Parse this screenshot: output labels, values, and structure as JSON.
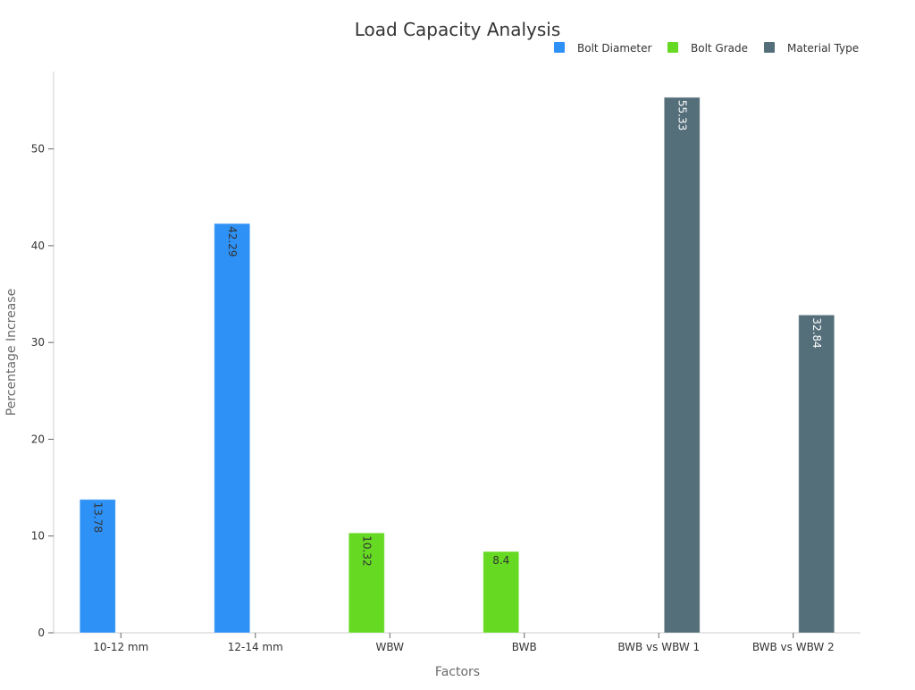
{
  "chart_data": {
    "type": "bar",
    "title": "Load Capacity Analysis",
    "xlabel": "Factors",
    "ylabel": "Percentage Increase",
    "categories": [
      "10-12 mm",
      "12-14 mm",
      "WBW",
      "BWB",
      "BWB vs WBW 1",
      "BWB vs WBW 2"
    ],
    "series": [
      {
        "name": "Bolt Diameter",
        "color": "#2e91f5",
        "values": [
          13.78,
          42.29,
          null,
          null,
          null,
          null
        ],
        "label_color": "#333333"
      },
      {
        "name": "Bolt Grade",
        "color": "#66d922",
        "values": [
          null,
          null,
          10.32,
          8.4,
          null,
          null
        ],
        "label_color": "#333333"
      },
      {
        "name": "Material Type",
        "color": "#546e7a",
        "values": [
          null,
          null,
          null,
          null,
          55.33,
          32.84
        ],
        "label_color": "#ffffff"
      }
    ],
    "ylim": [
      0,
      58
    ],
    "yticks": [
      0,
      10,
      20,
      30,
      40,
      50
    ],
    "grid": false,
    "legend_position": "top-right",
    "data_labels": [
      "13.78",
      "42.29",
      "10.32",
      "8.4",
      "55.33",
      "32.84"
    ],
    "yticks_text": [
      "0",
      "10",
      "20",
      "30",
      "40",
      "50"
    ]
  }
}
